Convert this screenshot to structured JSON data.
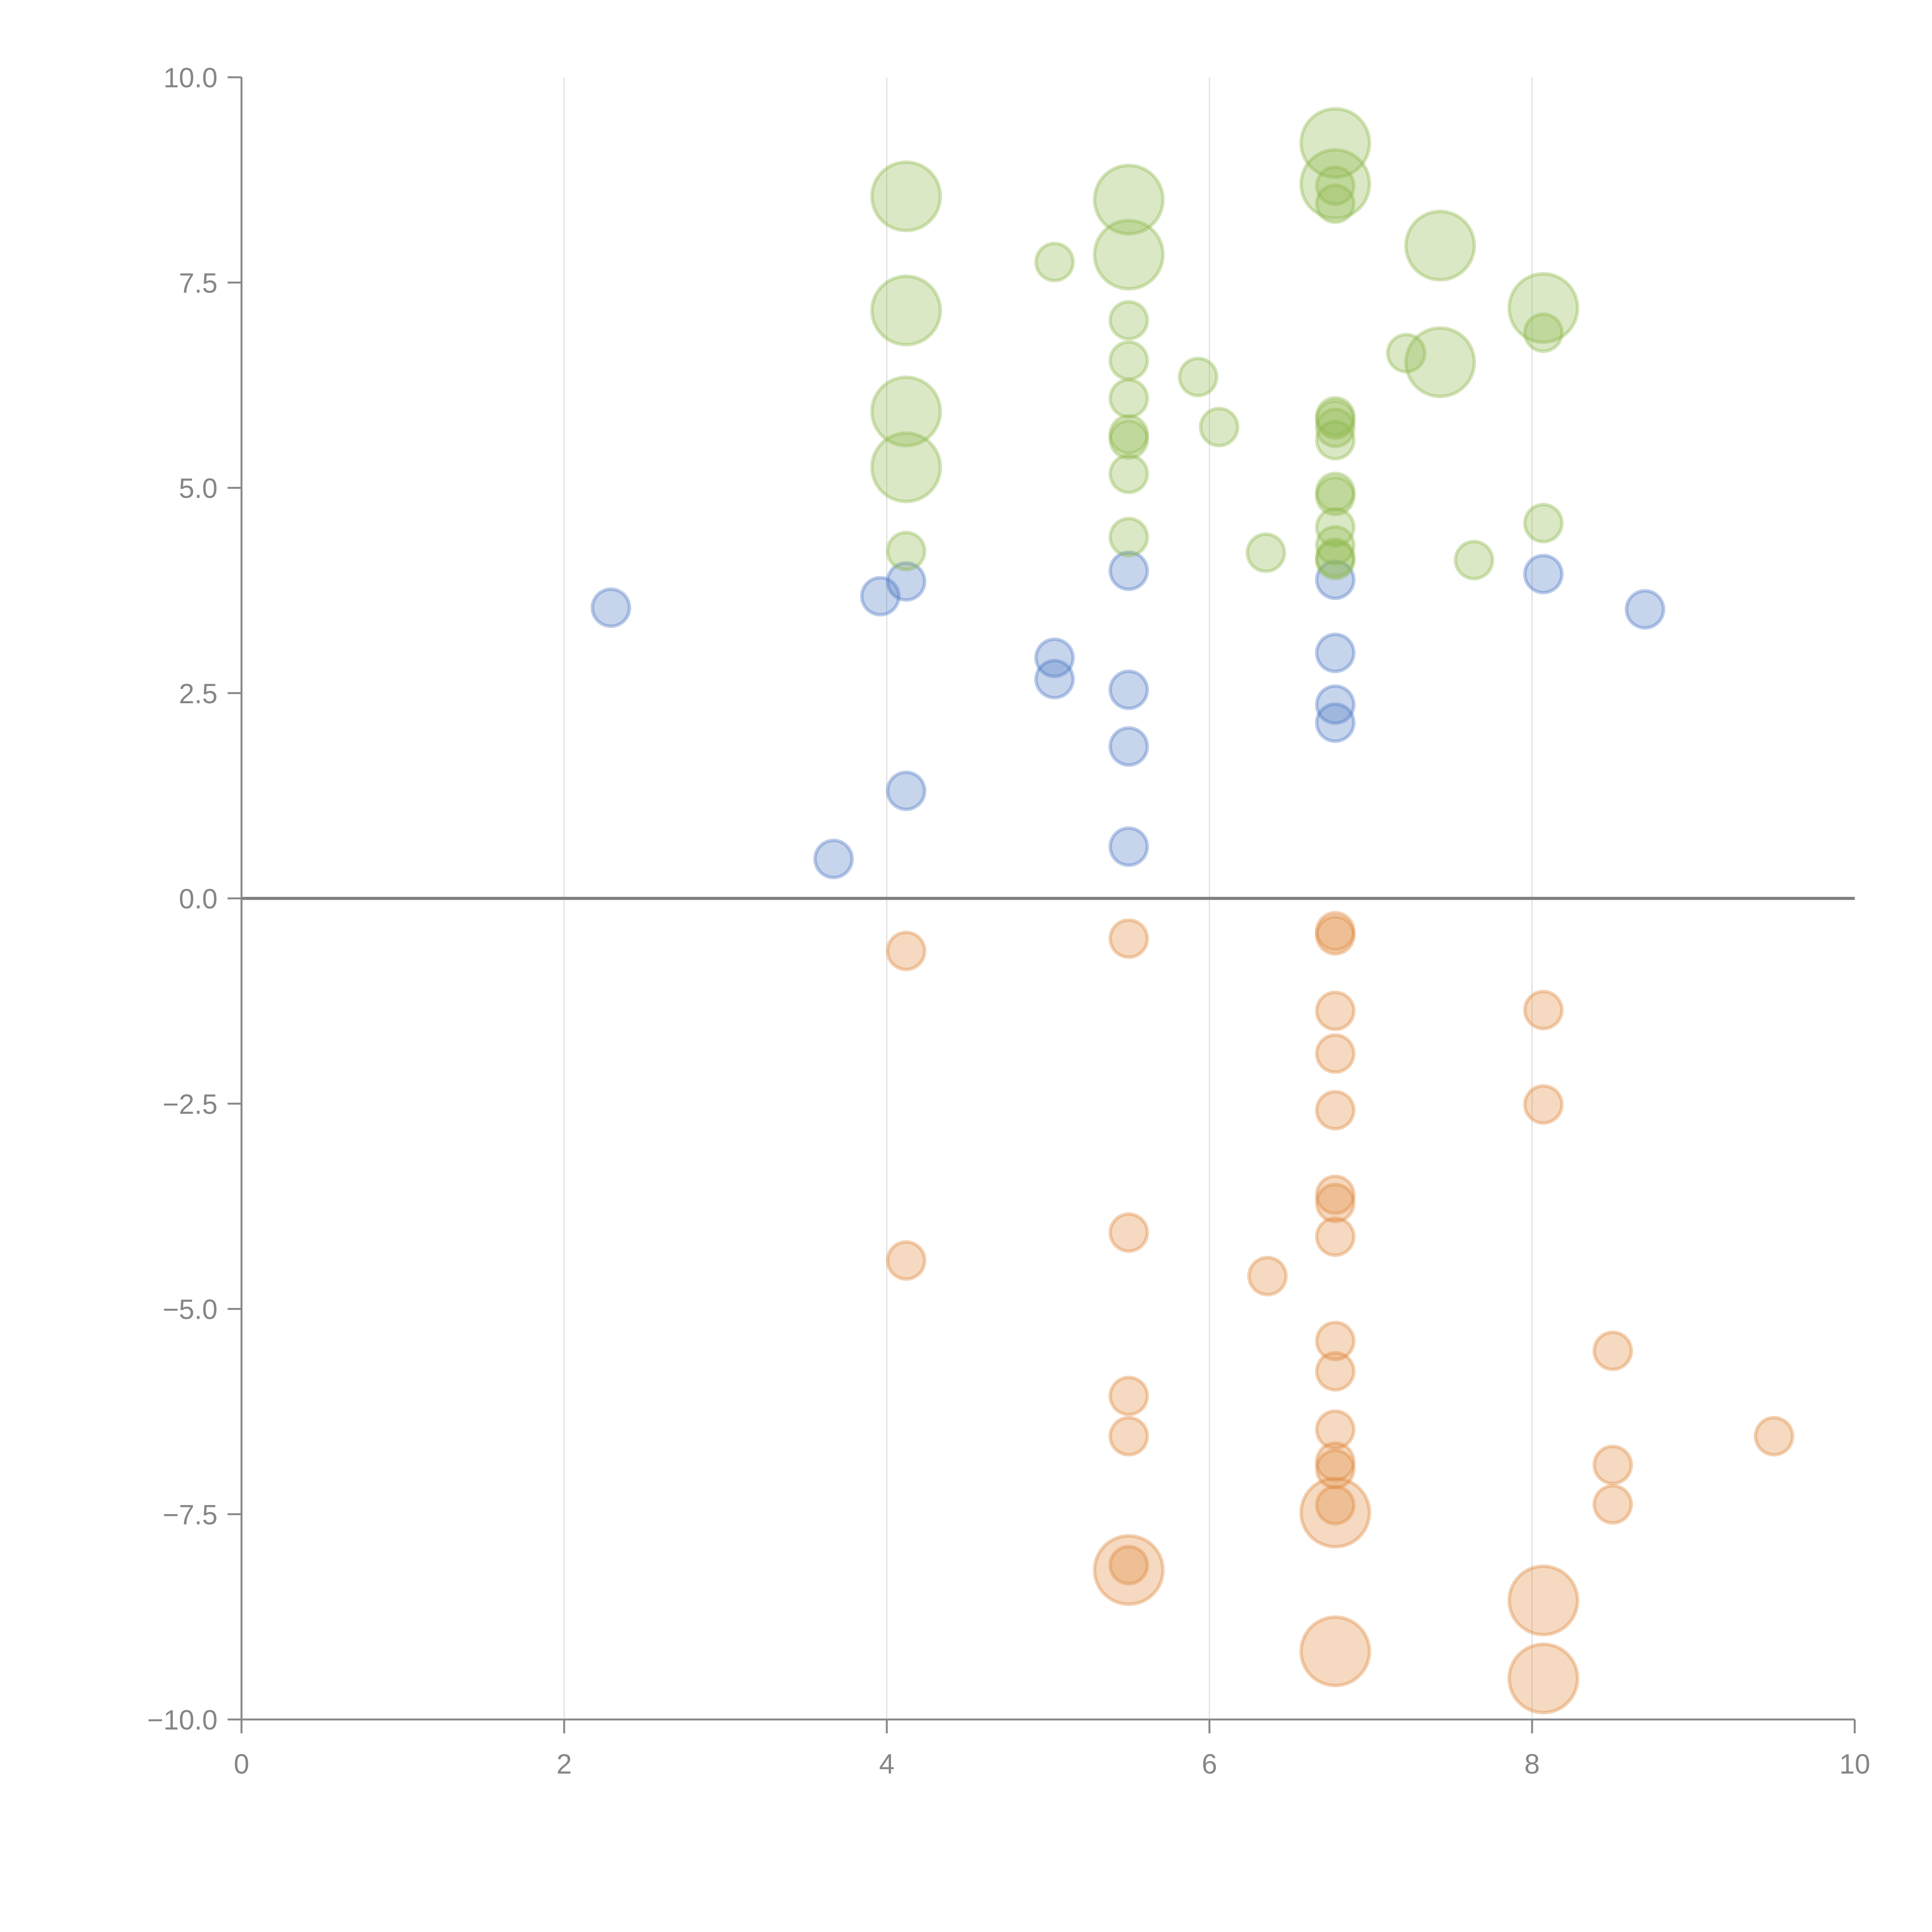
{
  "chart_data": {
    "type": "scatter",
    "subtype": "bubble",
    "title": "",
    "xlabel": "",
    "ylabel": "",
    "xlim": [
      0,
      10
    ],
    "ylim": [
      -10,
      10
    ],
    "x_ticks": [
      0,
      2,
      4,
      6,
      8,
      10
    ],
    "x_tick_labels": [
      "0",
      "2",
      "4",
      "6",
      "8",
      "10"
    ],
    "y_ticks": [
      10,
      7.5,
      5,
      2.5,
      0,
      -2.5,
      -5,
      -7.5,
      -10
    ],
    "y_tick_labels": [
      "10.0",
      "7.5",
      "5.0",
      "2.5",
      "0.0",
      "−2.5",
      "−5.0",
      "−7.5",
      "−10.0"
    ],
    "grid": "vertical",
    "zero_line": true,
    "legend": "none",
    "size_note": "relative bubble size: 1 = small, 3.4 = large",
    "series": [
      {
        "name": "blue",
        "fill": "#4e79c4",
        "stroke": "#4e79c4",
        "points": [
          {
            "x": 2.29,
            "y": 3.54,
            "size": 1
          },
          {
            "x": 3.67,
            "y": 0.48,
            "size": 1
          },
          {
            "x": 3.96,
            "y": 3.68,
            "size": 1
          },
          {
            "x": 4.12,
            "y": 3.86,
            "size": 1
          },
          {
            "x": 4.12,
            "y": 1.31,
            "size": 1
          },
          {
            "x": 5.04,
            "y": 2.93,
            "size": 1
          },
          {
            "x": 5.04,
            "y": 2.67,
            "size": 1
          },
          {
            "x": 5.5,
            "y": 3.99,
            "size": 1
          },
          {
            "x": 5.5,
            "y": 2.54,
            "size": 1
          },
          {
            "x": 5.5,
            "y": 1.85,
            "size": 1
          },
          {
            "x": 5.5,
            "y": 0.63,
            "size": 1
          },
          {
            "x": 6.78,
            "y": 3.88,
            "size": 1
          },
          {
            "x": 6.78,
            "y": 2.99,
            "size": 1
          },
          {
            "x": 6.78,
            "y": 2.36,
            "size": 1
          },
          {
            "x": 6.78,
            "y": 2.14,
            "size": 1
          },
          {
            "x": 8.07,
            "y": 3.95,
            "size": 1
          },
          {
            "x": 8.7,
            "y": 3.52,
            "size": 1
          }
        ]
      },
      {
        "name": "green",
        "fill": "#8db84a",
        "stroke": "#8db84a",
        "points": [
          {
            "x": 4.12,
            "y": 8.55,
            "size": 3.4
          },
          {
            "x": 4.12,
            "y": 7.16,
            "size": 3.4
          },
          {
            "x": 4.12,
            "y": 5.93,
            "size": 3.4
          },
          {
            "x": 4.12,
            "y": 5.25,
            "size": 3.4
          },
          {
            "x": 4.12,
            "y": 4.23,
            "size": 1
          },
          {
            "x": 5.04,
            "y": 7.75,
            "size": 1
          },
          {
            "x": 5.5,
            "y": 8.51,
            "size": 3.4
          },
          {
            "x": 5.5,
            "y": 7.84,
            "size": 3.4
          },
          {
            "x": 5.5,
            "y": 7.04,
            "size": 1
          },
          {
            "x": 5.5,
            "y": 6.55,
            "size": 1
          },
          {
            "x": 5.5,
            "y": 6.09,
            "size": 1
          },
          {
            "x": 5.5,
            "y": 5.65,
            "size": 1
          },
          {
            "x": 5.5,
            "y": 5.59,
            "size": 1
          },
          {
            "x": 5.5,
            "y": 5.17,
            "size": 1
          },
          {
            "x": 5.5,
            "y": 4.4,
            "size": 1
          },
          {
            "x": 5.93,
            "y": 6.35,
            "size": 1
          },
          {
            "x": 6.06,
            "y": 5.74,
            "size": 1
          },
          {
            "x": 6.35,
            "y": 4.21,
            "size": 1
          },
          {
            "x": 6.78,
            "y": 9.2,
            "size": 3.4
          },
          {
            "x": 6.78,
            "y": 8.7,
            "size": 3.4
          },
          {
            "x": 6.78,
            "y": 8.68,
            "size": 1
          },
          {
            "x": 6.78,
            "y": 8.46,
            "size": 1
          },
          {
            "x": 6.78,
            "y": 5.87,
            "size": 1
          },
          {
            "x": 6.78,
            "y": 5.83,
            "size": 1
          },
          {
            "x": 6.78,
            "y": 5.73,
            "size": 1
          },
          {
            "x": 6.78,
            "y": 5.58,
            "size": 1
          },
          {
            "x": 6.78,
            "y": 4.95,
            "size": 1
          },
          {
            "x": 6.78,
            "y": 4.9,
            "size": 1
          },
          {
            "x": 6.78,
            "y": 4.52,
            "size": 1
          },
          {
            "x": 6.78,
            "y": 4.3,
            "size": 1
          },
          {
            "x": 6.78,
            "y": 4.15,
            "size": 1
          },
          {
            "x": 6.78,
            "y": 4.12,
            "size": 1
          },
          {
            "x": 7.22,
            "y": 6.64,
            "size": 1
          },
          {
            "x": 7.43,
            "y": 7.95,
            "size": 3.4
          },
          {
            "x": 7.43,
            "y": 6.53,
            "size": 3.4
          },
          {
            "x": 7.64,
            "y": 4.12,
            "size": 1
          },
          {
            "x": 8.07,
            "y": 7.19,
            "size": 3.4
          },
          {
            "x": 8.07,
            "y": 6.89,
            "size": 1
          },
          {
            "x": 8.07,
            "y": 4.57,
            "size": 1
          }
        ]
      },
      {
        "name": "orange",
        "fill": "#e08a3c",
        "stroke": "#e08a3c",
        "points": [
          {
            "x": 4.12,
            "y": -0.64,
            "size": 1
          },
          {
            "x": 4.12,
            "y": -4.41,
            "size": 1
          },
          {
            "x": 5.5,
            "y": -0.49,
            "size": 1
          },
          {
            "x": 5.5,
            "y": -4.07,
            "size": 1
          },
          {
            "x": 5.5,
            "y": -6.06,
            "size": 1
          },
          {
            "x": 5.5,
            "y": -6.55,
            "size": 1
          },
          {
            "x": 5.5,
            "y": -8.18,
            "size": 3.4
          },
          {
            "x": 5.5,
            "y": -8.12,
            "size": 1
          },
          {
            "x": 6.36,
            "y": -4.6,
            "size": 1
          },
          {
            "x": 6.78,
            "y": -0.4,
            "size": 1
          },
          {
            "x": 6.78,
            "y": -0.45,
            "size": 1
          },
          {
            "x": 6.78,
            "y": -1.37,
            "size": 1
          },
          {
            "x": 6.78,
            "y": -1.89,
            "size": 1
          },
          {
            "x": 6.78,
            "y": -2.58,
            "size": 1
          },
          {
            "x": 6.78,
            "y": -3.61,
            "size": 1
          },
          {
            "x": 6.78,
            "y": -3.71,
            "size": 1
          },
          {
            "x": 6.78,
            "y": -4.12,
            "size": 1
          },
          {
            "x": 6.78,
            "y": -5.39,
            "size": 1
          },
          {
            "x": 6.78,
            "y": -5.76,
            "size": 1
          },
          {
            "x": 6.78,
            "y": -6.47,
            "size": 1
          },
          {
            "x": 6.78,
            "y": -6.86,
            "size": 1
          },
          {
            "x": 6.78,
            "y": -6.95,
            "size": 1
          },
          {
            "x": 6.78,
            "y": -7.48,
            "size": 3.4
          },
          {
            "x": 6.78,
            "y": -7.39,
            "size": 1
          },
          {
            "x": 6.78,
            "y": -9.17,
            "size": 3.4
          },
          {
            "x": 8.07,
            "y": -1.36,
            "size": 1
          },
          {
            "x": 8.07,
            "y": -2.51,
            "size": 1
          },
          {
            "x": 8.07,
            "y": -8.55,
            "size": 3.4
          },
          {
            "x": 8.07,
            "y": -9.5,
            "size": 3.4
          },
          {
            "x": 8.5,
            "y": -5.51,
            "size": 1
          },
          {
            "x": 8.5,
            "y": -6.9,
            "size": 1
          },
          {
            "x": 8.5,
            "y": -7.38,
            "size": 1
          },
          {
            "x": 9.5,
            "y": -6.55,
            "size": 1
          }
        ]
      }
    ]
  }
}
